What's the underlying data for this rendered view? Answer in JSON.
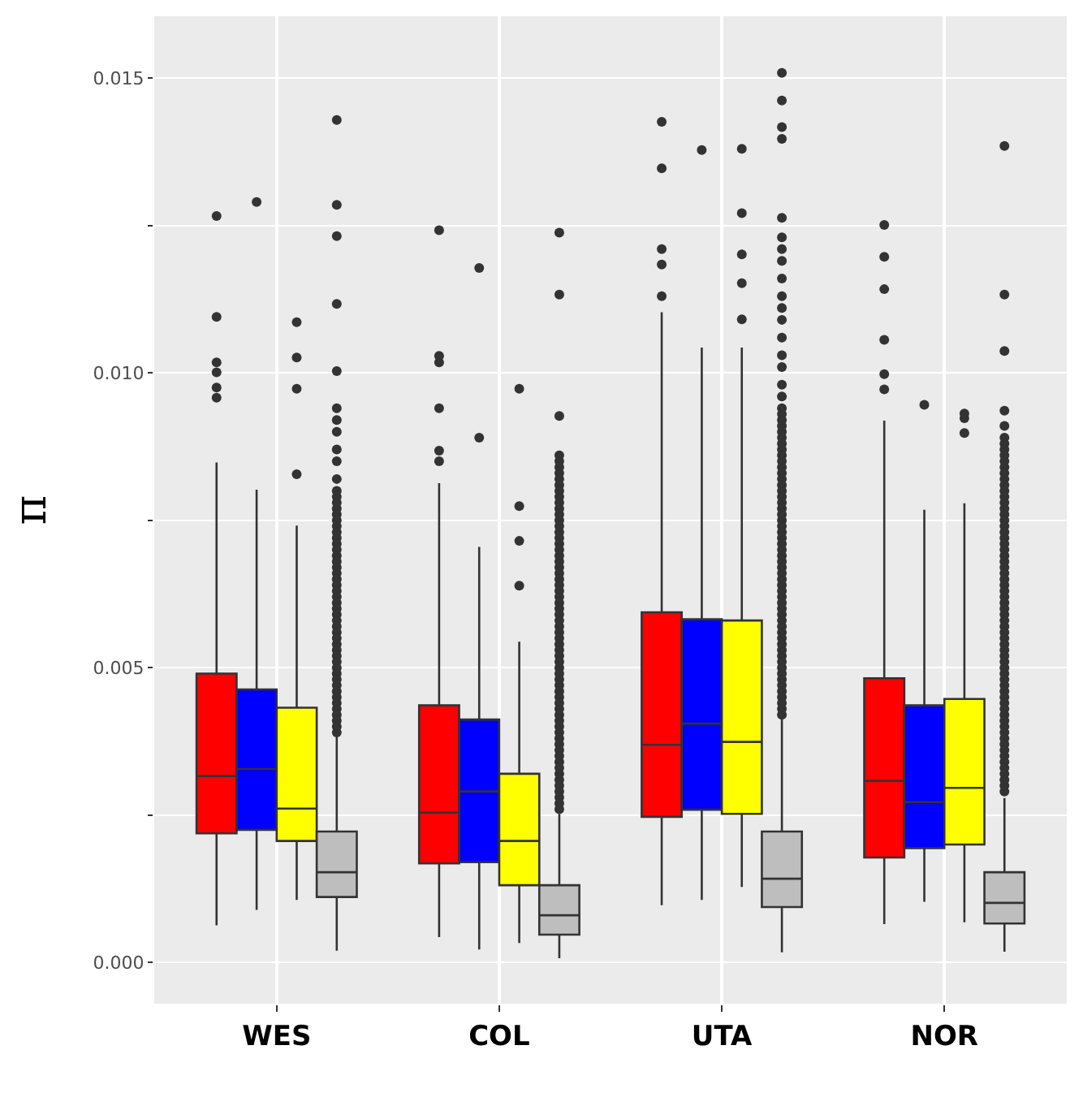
{
  "chart_data": {
    "type": "box",
    "ylabel": "π",
    "categories": [
      "WES",
      "COL",
      "UTA",
      "NOR"
    ],
    "ylim": [
      -0.0007,
      0.01605
    ],
    "yticks": [
      {
        "value": 0,
        "label": "0.000"
      },
      {
        "value": 0.0025,
        "label": null
      },
      {
        "value": 0.005,
        "label": "0.005"
      },
      {
        "value": 0.0075,
        "label": null
      },
      {
        "value": 0.01,
        "label": "0.010"
      },
      {
        "value": 0.0125,
        "label": null
      },
      {
        "value": 0.015,
        "label": "0.015"
      }
    ],
    "grid": true,
    "series": [
      {
        "color": "#ff0000",
        "boxes": [
          {
            "low": 0.00063,
            "q1": 0.00219,
            "median": 0.00316,
            "q3": 0.0049,
            "high": 0.00848,
            "outliers": [
              0.01266,
              0.01095,
              0.01018,
              0.01001,
              0.00975,
              0.00958
            ]
          },
          {
            "low": 0.00043,
            "q1": 0.00168,
            "median": 0.00254,
            "q3": 0.00436,
            "high": 0.00813,
            "outliers": [
              0.01242,
              0.01029,
              0.01018,
              0.0094,
              0.00868,
              0.0085
            ]
          },
          {
            "low": 0.00097,
            "q1": 0.00247,
            "median": 0.00369,
            "q3": 0.00594,
            "high": 0.01103,
            "outliers": [
              0.01426,
              0.01347,
              0.0121,
              0.01184,
              0.0113
            ]
          },
          {
            "low": 0.00065,
            "q1": 0.00178,
            "median": 0.00308,
            "q3": 0.00482,
            "high": 0.00919,
            "outliers": [
              0.01251,
              0.01197,
              0.01142,
              0.01056,
              0.00998,
              0.00972
            ]
          }
        ]
      },
      {
        "color": "#0000ff",
        "boxes": [
          {
            "low": 0.00089,
            "q1": 0.00225,
            "median": 0.00328,
            "q3": 0.00463,
            "high": 0.00802,
            "outliers": [
              0.0129
            ]
          },
          {
            "low": 0.00022,
            "q1": 0.0017,
            "median": 0.0029,
            "q3": 0.00412,
            "high": 0.00705,
            "outliers": [
              0.01178,
              0.0089
            ]
          },
          {
            "low": 0.00106,
            "q1": 0.00259,
            "median": 0.00405,
            "q3": 0.00582,
            "high": 0.01043,
            "outliers": [
              0.01378
            ]
          },
          {
            "low": 0.00103,
            "q1": 0.00194,
            "median": 0.00272,
            "q3": 0.00436,
            "high": 0.00768,
            "outliers": [
              0.00946
            ]
          }
        ]
      },
      {
        "color": "#ffff00",
        "boxes": [
          {
            "low": 0.00106,
            "q1": 0.00206,
            "median": 0.00261,
            "q3": 0.00432,
            "high": 0.00741,
            "outliers": [
              0.01086,
              0.01026,
              0.00973,
              0.00828
            ]
          },
          {
            "low": 0.00033,
            "q1": 0.00131,
            "median": 0.00206,
            "q3": 0.0032,
            "high": 0.00544,
            "outliers": [
              0.00973,
              0.00774,
              0.00715,
              0.00639
            ]
          },
          {
            "low": 0.00128,
            "q1": 0.00252,
            "median": 0.00374,
            "q3": 0.0058,
            "high": 0.01043,
            "outliers": [
              0.0138,
              0.01271,
              0.01201,
              0.01152,
              0.01091
            ]
          },
          {
            "low": 0.00068,
            "q1": 0.002,
            "median": 0.00296,
            "q3": 0.00447,
            "high": 0.00779,
            "outliers": [
              0.00931,
              0.00923,
              0.00898
            ]
          }
        ]
      },
      {
        "color": "#bebebe",
        "boxes": [
          {
            "low": 0.0002,
            "q1": 0.00111,
            "median": 0.00153,
            "q3": 0.00222,
            "high": 0.00384,
            "outliers": [
              0.01429,
              0.01285,
              0.01232,
              0.01117,
              0.01003,
              0.0094,
              0.0092,
              0.009,
              0.0087,
              0.0085,
              0.0082,
              0.008,
              0.0079,
              0.0078,
              0.0077,
              0.0076,
              0.0075,
              0.0074,
              0.0073,
              0.0072,
              0.0071,
              0.007,
              0.0069,
              0.0068,
              0.0067,
              0.0066,
              0.0065,
              0.0064,
              0.0063,
              0.0062,
              0.0061,
              0.006,
              0.0059,
              0.0058,
              0.0057,
              0.0056,
              0.0055,
              0.0054,
              0.0053,
              0.0052,
              0.0051,
              0.005,
              0.0049,
              0.0048,
              0.0047,
              0.0046,
              0.0045,
              0.0044,
              0.0043,
              0.0042,
              0.0041,
              0.004,
              0.0039
            ]
          },
          {
            "low": 7e-05,
            "q1": 0.00047,
            "median": 0.0008,
            "q3": 0.00131,
            "high": 0.00252,
            "outliers": [
              0.01238,
              0.01133,
              0.00927,
              0.0086,
              0.0085,
              0.0084,
              0.0083,
              0.0082,
              0.0081,
              0.008,
              0.0079,
              0.0078,
              0.0077,
              0.0076,
              0.0075,
              0.0074,
              0.0073,
              0.0072,
              0.0071,
              0.007,
              0.0069,
              0.0068,
              0.0067,
              0.0066,
              0.0065,
              0.0064,
              0.0063,
              0.0062,
              0.0061,
              0.006,
              0.0059,
              0.0058,
              0.0057,
              0.0056,
              0.0055,
              0.0054,
              0.0053,
              0.0052,
              0.0051,
              0.005,
              0.0049,
              0.0048,
              0.0047,
              0.0046,
              0.0045,
              0.0044,
              0.0043,
              0.0042,
              0.0041,
              0.004,
              0.0039,
              0.0038,
              0.0037,
              0.0036,
              0.0035,
              0.0034,
              0.0033,
              0.0032,
              0.0031,
              0.003,
              0.0029,
              0.0028,
              0.0027,
              0.0026
            ]
          },
          {
            "low": 0.00017,
            "q1": 0.00094,
            "median": 0.00142,
            "q3": 0.00222,
            "high": 0.00412,
            "outliers": [
              0.01509,
              0.01462,
              0.01417,
              0.01397,
              0.01263,
              0.0123,
              0.0121,
              0.0119,
              0.0116,
              0.0113,
              0.0111,
              0.0109,
              0.0106,
              0.0103,
              0.0101,
              0.0098,
              0.0096,
              0.0094,
              0.0093,
              0.0092,
              0.0091,
              0.009,
              0.0089,
              0.0088,
              0.0087,
              0.0086,
              0.0085,
              0.0084,
              0.0083,
              0.0082,
              0.0081,
              0.008,
              0.0079,
              0.0078,
              0.0077,
              0.0076,
              0.0075,
              0.0074,
              0.0073,
              0.0072,
              0.0071,
              0.007,
              0.0069,
              0.0068,
              0.0067,
              0.0066,
              0.0065,
              0.0064,
              0.0063,
              0.0062,
              0.0061,
              0.006,
              0.0059,
              0.0058,
              0.0057,
              0.0056,
              0.0055,
              0.0054,
              0.0053,
              0.0052,
              0.0051,
              0.005,
              0.0049,
              0.0048,
              0.0047,
              0.0046,
              0.0045,
              0.0044,
              0.0043,
              0.0042
            ]
          },
          {
            "low": 0.00018,
            "q1": 0.00066,
            "median": 0.00101,
            "q3": 0.00153,
            "high": 0.00279,
            "outliers": [
              0.01385,
              0.01133,
              0.01037,
              0.00936,
              0.0091,
              0.0089,
              0.0088,
              0.0087,
              0.0086,
              0.0085,
              0.0084,
              0.0083,
              0.0082,
              0.0081,
              0.008,
              0.0079,
              0.0078,
              0.0077,
              0.0076,
              0.0075,
              0.0074,
              0.0073,
              0.0072,
              0.0071,
              0.007,
              0.0069,
              0.0068,
              0.0067,
              0.0066,
              0.0065,
              0.0064,
              0.0063,
              0.0062,
              0.0061,
              0.006,
              0.0059,
              0.0058,
              0.0057,
              0.0056,
              0.0055,
              0.0054,
              0.0053,
              0.0052,
              0.0051,
              0.005,
              0.0049,
              0.0048,
              0.0047,
              0.0046,
              0.0045,
              0.0044,
              0.0043,
              0.0042,
              0.0041,
              0.004,
              0.0039,
              0.0038,
              0.0037,
              0.0036,
              0.0035,
              0.0034,
              0.0033,
              0.0032,
              0.0031,
              0.003,
              0.0029
            ]
          }
        ]
      }
    ]
  }
}
